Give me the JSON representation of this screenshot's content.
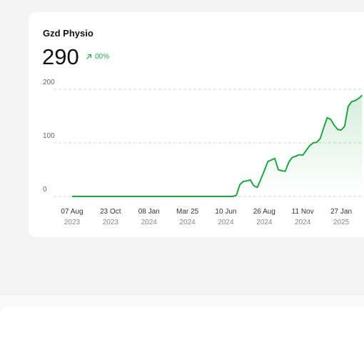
{
  "card": {
    "title": "Gzd Physio",
    "value": 290,
    "change": "00%"
  },
  "chart_data": {
    "type": "line",
    "color": "#1fa344",
    "x": [
      "2023-08-07",
      "2024-06-24",
      "2024-07-01",
      "2024-07-08",
      "2024-07-15",
      "2024-07-22",
      "2024-07-29",
      "2024-08-05",
      "2024-08-12",
      "2024-08-19",
      "2024-08-26",
      "2024-09-02",
      "2024-09-09",
      "2024-09-16",
      "2024-09-23",
      "2024-09-30",
      "2024-10-07",
      "2024-10-14",
      "2024-10-21",
      "2024-10-28",
      "2024-11-04",
      "2024-11-11",
      "2024-11-18",
      "2024-11-25",
      "2024-12-02",
      "2024-12-09",
      "2024-12-16",
      "2024-12-23",
      "2024-12-30",
      "2025-01-06",
      "2025-01-13",
      "2025-01-20",
      "2025-01-27",
      "2025-02-03",
      "2025-02-10",
      "2025-02-17",
      "2025-02-24",
      "2025-03-03",
      "2025-03-10"
    ],
    "values": [
      0,
      0,
      2,
      22,
      28,
      29,
      31,
      20,
      17,
      32,
      48,
      65,
      68,
      71,
      50,
      48,
      47,
      64,
      73,
      75,
      78,
      77,
      86,
      95,
      100,
      101,
      108,
      128,
      147,
      144,
      133,
      125,
      124,
      131,
      168,
      177,
      179,
      183,
      189
    ],
    "xlim": [
      "2023-08-07",
      "2025-03-10"
    ],
    "xticks": [
      {
        "value": "2023-08-07",
        "label": "07 Aug",
        "sublabel": "2023"
      },
      {
        "value": "2023-10-23",
        "label": "23 Oct",
        "sublabel": "2023"
      },
      {
        "value": "2024-01-08",
        "label": "08 Jan",
        "sublabel": "2024"
      },
      {
        "value": "2024-03-25",
        "label": "Mar 25",
        "sublabel": "2024"
      },
      {
        "value": "2024-06-10",
        "label": "10 Jun",
        "sublabel": "2024"
      },
      {
        "value": "2024-08-26",
        "label": "26 Aug",
        "sublabel": "2024"
      },
      {
        "value": "2024-11-11",
        "label": "11 Nov",
        "sublabel": "2024"
      },
      {
        "value": "2025-01-27",
        "label": "27 Jan",
        "sublabel": "2025"
      }
    ],
    "ylim": [
      0,
      200
    ],
    "yticks": [
      0,
      100,
      200
    ],
    "grid": true
  }
}
